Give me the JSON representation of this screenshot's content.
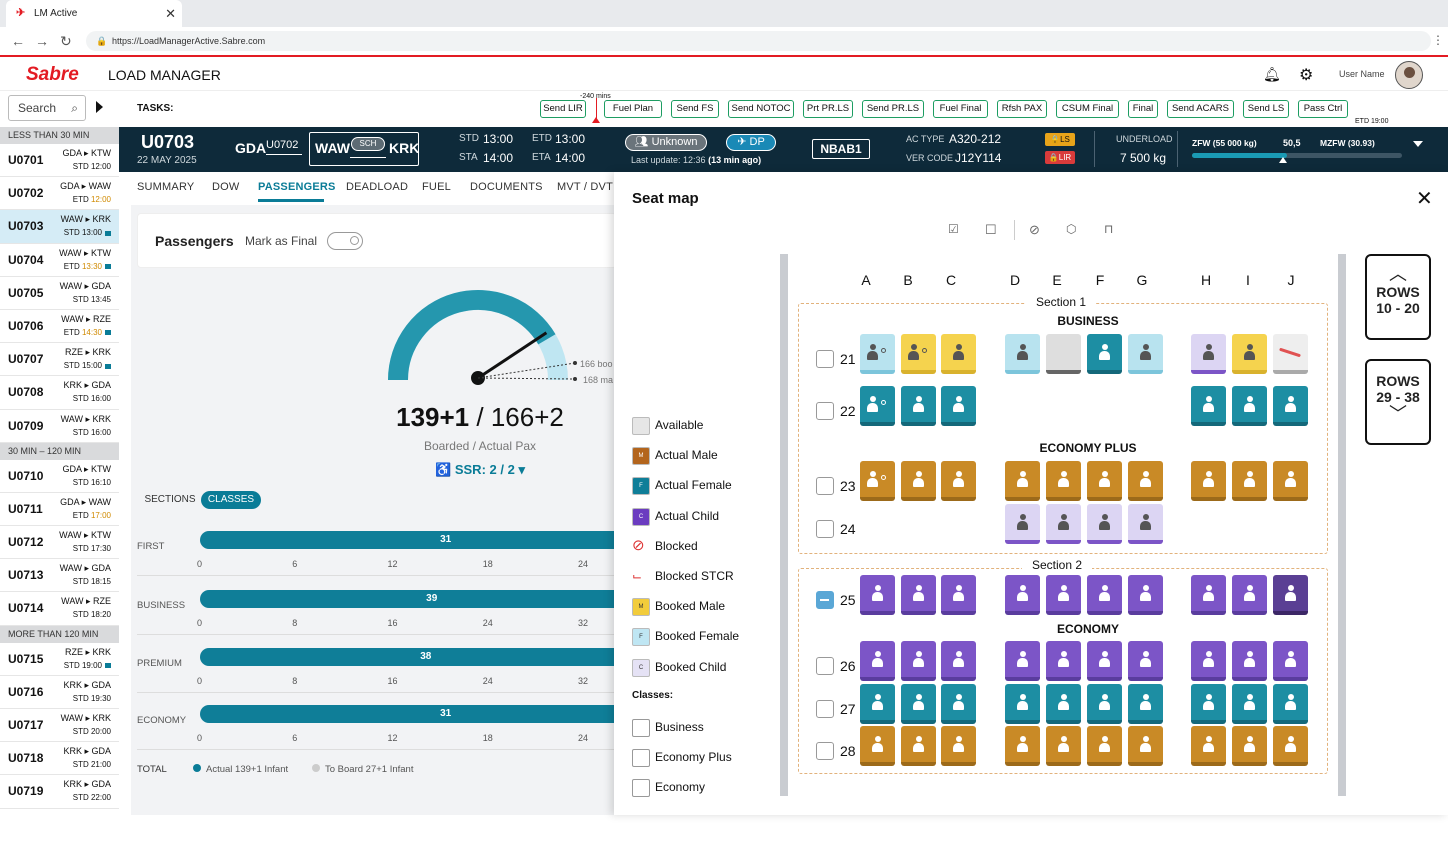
{
  "browser": {
    "tab_title": "LM Active",
    "url": "https://LoadManagerActive.Sabre.com"
  },
  "app": {
    "brand": "Sabre",
    "title": "LOAD MANAGER",
    "user_name": "User Name"
  },
  "search": {
    "placeholder": "Search"
  },
  "flight_groups": [
    {
      "label": "LESS THAN 30 MIN",
      "flights": [
        {
          "num": "U0701",
          "route": "GDA ▸ KTW",
          "time_label": "STD",
          "time": "12:00",
          "time_color": "normal",
          "flag": false
        },
        {
          "num": "U0702",
          "route": "GDA ▸ WAW",
          "time_label": "ETD",
          "time": "12:00",
          "time_color": "orange",
          "flag": false
        },
        {
          "num": "U0703",
          "route": "WAW ▸ KRK",
          "time_label": "STD",
          "time": "13:00",
          "time_color": "normal",
          "flag": true,
          "selected": true
        },
        {
          "num": "U0704",
          "route": "WAW ▸ KTW",
          "time_label": "ETD",
          "time": "13:30",
          "time_color": "orange",
          "flag": true
        },
        {
          "num": "U0705",
          "route": "WAW ▸ GDA",
          "time_label": "STD",
          "time": "13:45",
          "time_color": "normal",
          "flag": false
        },
        {
          "num": "U0706",
          "route": "WAW ▸ RZE",
          "time_label": "ETD",
          "time": "14:30",
          "time_color": "orange",
          "flag": true
        },
        {
          "num": "U0707",
          "route": "RZE ▸ KRK",
          "time_label": "STD",
          "time": "15:00",
          "time_color": "normal",
          "flag": true
        },
        {
          "num": "U0708",
          "route": "KRK ▸ GDA",
          "time_label": "STD",
          "time": "16:00",
          "time_color": "normal",
          "flag": false
        },
        {
          "num": "U0709",
          "route": "WAW ▸ KRK",
          "time_label": "STD",
          "time": "16:00",
          "time_color": "normal",
          "flag": false
        }
      ]
    },
    {
      "label": "30 MIN – 120 MIN",
      "flights": [
        {
          "num": "U0710",
          "route": "GDA ▸ KTW",
          "time_label": "STD",
          "time": "16:10",
          "time_color": "normal",
          "flag": false
        },
        {
          "num": "U0711",
          "route": "GDA ▸ WAW",
          "time_label": "ETD",
          "time": "17:00",
          "time_color": "orange",
          "flag": false
        },
        {
          "num": "U0712",
          "route": "WAW ▸ KTW",
          "time_label": "STD",
          "time": "17:30",
          "time_color": "normal",
          "flag": false
        },
        {
          "num": "U0713",
          "route": "WAW ▸ GDA",
          "time_label": "STD",
          "time": "18:15",
          "time_color": "normal",
          "flag": false
        },
        {
          "num": "U0714",
          "route": "WAW ▸ RZE",
          "time_label": "STD",
          "time": "18:20",
          "time_color": "normal",
          "flag": false
        }
      ]
    },
    {
      "label": "MORE THAN 120 MIN",
      "flights": [
        {
          "num": "U0715",
          "route": "RZE ▸ KRK",
          "time_label": "STD",
          "time": "19:00",
          "time_color": "normal",
          "flag": true
        },
        {
          "num": "U0716",
          "route": "KRK ▸ GDA",
          "time_label": "STD",
          "time": "19:30",
          "time_color": "normal",
          "flag": false
        },
        {
          "num": "U0717",
          "route": "WAW ▸ KRK",
          "time_label": "STD",
          "time": "20:00",
          "time_color": "normal",
          "flag": false
        },
        {
          "num": "U0718",
          "route": "KRK ▸ GDA",
          "time_label": "STD",
          "time": "21:00",
          "time_color": "normal",
          "flag": false
        },
        {
          "num": "U0719",
          "route": "KRK ▸ GDA",
          "time_label": "STD",
          "time": "22:00",
          "time_color": "normal",
          "flag": false
        }
      ]
    }
  ],
  "tasks": {
    "label": "TASKS:",
    "minutes_marker": "-240 mins",
    "etd_marker": "ETD 19:00",
    "items": [
      "Send LIR",
      "Fuel Plan",
      "Send FS",
      "Send NOTOC",
      "Prt PR.LS",
      "Send PR.LS",
      "Fuel Final",
      "Rfsh PAX",
      "CSUM Final",
      "Final",
      "Send ACARS",
      "Send LS",
      "Pass Ctrl"
    ]
  },
  "flight": {
    "number": "U0703",
    "date": "22 MAY 2025",
    "origin": "GDA",
    "linked": "U0702",
    "from": "WAW",
    "status_pill": "SCH",
    "to": "KRK",
    "std_label": "STD",
    "std": "13:00",
    "sta_label": "STA",
    "sta": "14:00",
    "etd_label": "ETD",
    "etd": "13:00",
    "eta_label": "ETA",
    "eta": "14:00",
    "unknown_label": "Unknown",
    "dp_label": "DP",
    "last_update_label": "Last update: 12:36",
    "last_update_ago": "(13 min ago)",
    "registration": "NBAB1",
    "ac_type_label": "AC TYPE",
    "ac_type": "A320-212",
    "ver_code_label": "VER CODE",
    "ver_code": "J12Y114",
    "ls_badge": "LS",
    "lir_badge": "LIR",
    "underload_label": "UNDERLOAD",
    "underload": "7 500 kg",
    "zfw_label": "ZFW (55 000 kg)",
    "zfw_value": "50,5",
    "mzfw_label": "MZFW (30.93)",
    "zfw_fill": 0.45
  },
  "nav_tabs": [
    "SUMMARY",
    "DOW",
    "PASSENGERS",
    "DEADLOAD",
    "FUEL",
    "DOCUMENTS",
    "MVT / DVT"
  ],
  "active_tab": "PASSENGERS",
  "passengers": {
    "title": "Passengers",
    "mark_final": "Mark as Final",
    "gauge_fill": 0.83,
    "gauge_note1": "166 boo",
    "gauge_note2": "168 ma",
    "boarded": "139+1",
    "actual": "166+2",
    "sep": "/",
    "sub": "Boarded / Actual Pax",
    "ssr": "SSR: 2 / 2",
    "toggle_sections": "SECTIONS",
    "toggle_classes": "CLASSES",
    "classes": [
      {
        "name": "FIRST",
        "value": 31,
        "ticks": [
          "0",
          "6",
          "12",
          "18",
          "24"
        ],
        "max": 24
      },
      {
        "name": "BUSINESS",
        "value": 39,
        "ticks": [
          "0",
          "8",
          "16",
          "24",
          "32"
        ],
        "max": 32
      },
      {
        "name": "PREMIUM",
        "value": 38,
        "ticks": [
          "0",
          "8",
          "16",
          "24",
          "32"
        ],
        "max": 32
      },
      {
        "name": "ECONOMY",
        "value": 31,
        "ticks": [
          "0",
          "6",
          "12",
          "18",
          "24"
        ],
        "max": 24
      }
    ],
    "total_label": "TOTAL",
    "total_actual": "Actual 139+1 Infant",
    "total_board": "To Board 27+1 Infant"
  },
  "seatmap": {
    "title": "Seat map",
    "columns": [
      "A",
      "B",
      "C",
      "D",
      "E",
      "F",
      "G",
      "H",
      "I",
      "J"
    ],
    "section1": "Section 1",
    "section2": "Section 2",
    "business": "BUSINESS",
    "economy_plus": "ECONOMY PLUS",
    "economy": "ECONOMY",
    "rows_up": "ROWS",
    "rows_up_range": "10 - 20",
    "rows_down": "ROWS",
    "rows_down_range": "29 - 38",
    "legend": [
      "Available",
      "Actual Male",
      "Actual Female",
      "Actual Child",
      "Blocked",
      "Blocked STCR",
      "Booked Male",
      "Booked Female",
      "Booked Child"
    ],
    "legend_codes": [
      "",
      "M",
      "F",
      "C",
      "",
      "",
      "M",
      "F",
      "C"
    ],
    "classes_label": "Classes:",
    "class_legend": [
      "Business",
      "Economy Plus",
      "Economy"
    ],
    "rows": [
      {
        "n": "21",
        "seats": [
          "lb-inf",
          "y-inf",
          "y",
          "",
          "lb",
          "grey",
          "teal",
          "lb",
          "",
          "lpur",
          "y",
          "stcr"
        ]
      },
      {
        "n": "22",
        "seats": [
          "teal-inf",
          "teal",
          "teal",
          "",
          "",
          "",
          "",
          "",
          "",
          "teal",
          "teal",
          "teal"
        ]
      },
      {
        "n": "23",
        "seats": [
          "or-inf",
          "or",
          "or",
          "",
          "or",
          "or",
          "or",
          "or",
          "",
          "or",
          "or",
          "or"
        ]
      },
      {
        "n": "24",
        "seats": [
          "",
          "",
          "",
          "",
          "lpur",
          "lpur",
          "lpur",
          "lpur",
          "",
          "",
          "",
          ""
        ]
      },
      {
        "n": "25",
        "seats": [
          "pur",
          "pur",
          "pur",
          "",
          "pur",
          "pur",
          "pur",
          "pur",
          "",
          "pur",
          "pur",
          "dpur"
        ]
      },
      {
        "n": "26",
        "seats": [
          "pur",
          "pur",
          "pur",
          "",
          "pur",
          "pur",
          "pur",
          "pur",
          "",
          "pur",
          "pur",
          "pur"
        ]
      },
      {
        "n": "27",
        "seats": [
          "teal",
          "teal",
          "teal",
          "",
          "teal",
          "teal",
          "teal",
          "teal",
          "",
          "teal",
          "teal",
          "teal"
        ]
      },
      {
        "n": "28",
        "seats": [
          "or",
          "or",
          "or",
          "",
          "or",
          "or",
          "or",
          "or",
          "",
          "or",
          "or",
          "or"
        ]
      }
    ]
  },
  "colors": {
    "accent": "#0a7c97",
    "brand": "#e31b23",
    "header": "#0e2a3a",
    "purple": "#7c55c7",
    "teal": "#1d8ea3",
    "orange": "#c98a26",
    "yellow": "#f5d34e",
    "lightblue": "#b8e3ef"
  }
}
